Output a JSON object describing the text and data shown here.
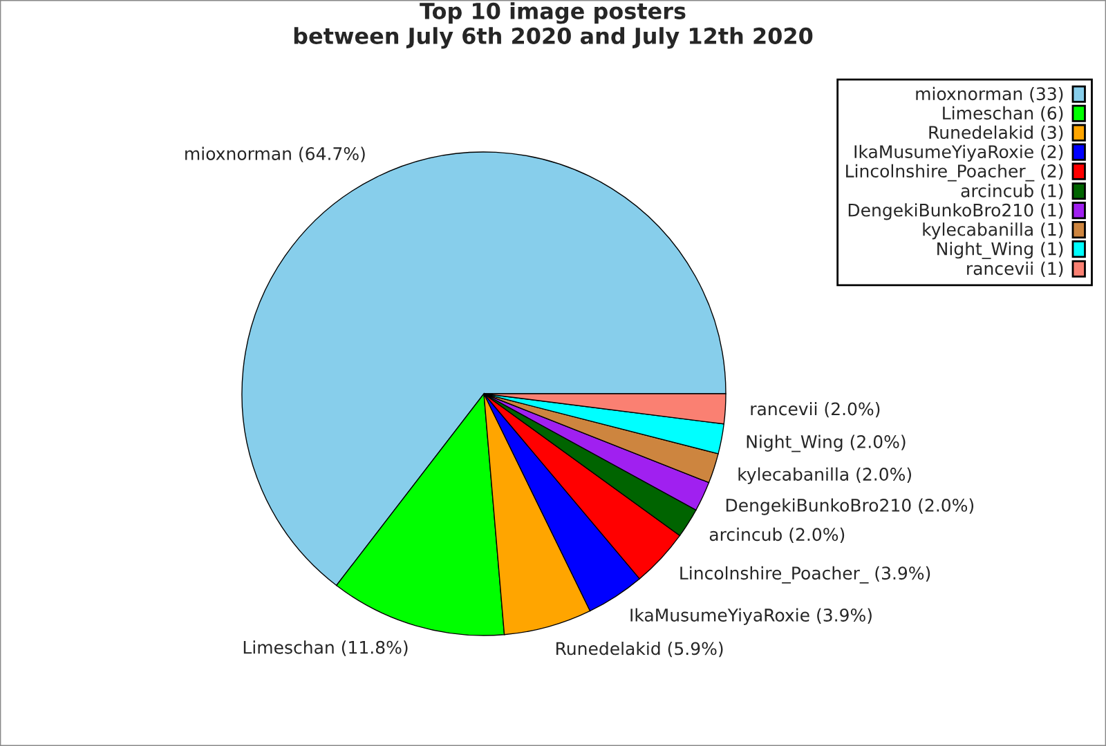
{
  "chart_data": {
    "type": "pie",
    "title": "Top 10 image posters\nbetween July 6th 2020 and July 12th 2020",
    "categories": [
      "mioxnorman (33)",
      "Limeschan (6)",
      "Runedelakid (3)",
      "IkaMusumeYiyaRoxie (2)",
      "Lincolnshire_Poacher_ (2)",
      "arcincub (1)",
      "DengekiBunkoBro210 (1)",
      "kylecabanilla (1)",
      "Night_Wing (1)",
      "rancevii (1)"
    ],
    "values": [
      64.7,
      11.8,
      5.9,
      3.9,
      3.9,
      2.0,
      2.0,
      2.0,
      2.0,
      2.0
    ],
    "value_labels": [
      "mioxnorman (64.7%)",
      "Limeschan (11.8%)",
      "Runedelakid (5.9%)",
      "IkaMusumeYiyaRoxie (3.9%)",
      "Lincolnshire_Poacher_ (3.9%)",
      "arcincub (2.0%)",
      "DengekiBunkoBro210 (2.0%)",
      "kylecabanilla (2.0%)",
      "Night_Wing (2.0%)",
      "rancevii (2.0%)"
    ],
    "colors": [
      "#87ceeb",
      "#00ff00",
      "#ffa500",
      "#0000ff",
      "#ff0000",
      "#006400",
      "#a020f0",
      "#cd853f",
      "#00ffff",
      "#fa8072"
    ],
    "legend": "top right"
  }
}
